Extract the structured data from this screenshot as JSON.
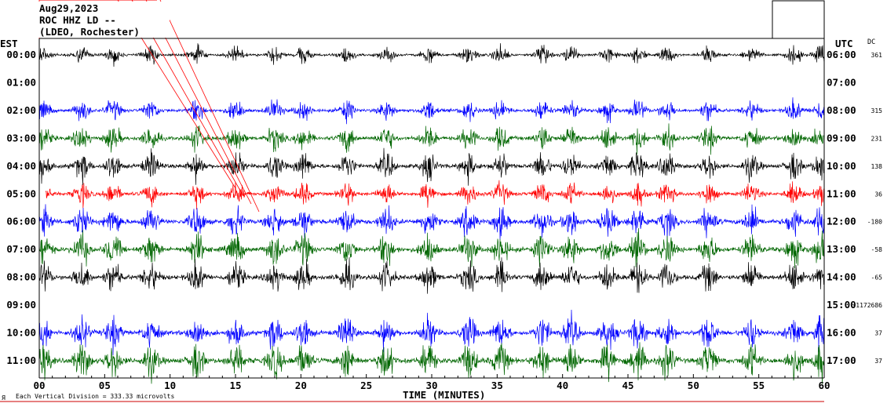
{
  "header": {
    "date": "Aug29,2023",
    "station": "ROC HHZ LD --",
    "network": "(LDEO, Rochester)"
  },
  "left_axis_label": "EST",
  "right_axis_label": "UTC",
  "dc_label": "DC",
  "footer": {
    "scale_note": "Each Vertical Division =  333.33 microvolts",
    "logo_glyph": "Я"
  },
  "colors": {
    "black": "#000000",
    "blue": "#0000ff",
    "green": "#006600",
    "red": "#ff0000"
  },
  "chart_data": {
    "type": "line",
    "title": "Aug29,2023 ROC HHZ LD -- (LDEO, Rochester)",
    "xlabel": "TIME (MINUTES)",
    "ylabel_left": "EST",
    "ylabel_right": "UTC",
    "x_ticks": [
      "00",
      "05",
      "10",
      "15",
      "20",
      "25",
      "30",
      "35",
      "40",
      "45",
      "50",
      "55",
      "60"
    ],
    "xlim": [
      0,
      60
    ],
    "grid": false,
    "rows": [
      {
        "est": "00:00",
        "utc": "06:00",
        "dc": "361",
        "color": "black",
        "amplitude": 0.55,
        "start": 0,
        "end": 60
      },
      {
        "est": "01:00",
        "utc": "07:00",
        "dc": "",
        "color": "blue",
        "amplitude": 0,
        "start": 0,
        "end": 0
      },
      {
        "est": "02:00",
        "utc": "08:00",
        "dc": "315",
        "color": "blue",
        "amplitude": 0.7,
        "start": 0,
        "end": 60
      },
      {
        "est": "03:00",
        "utc": "09:00",
        "dc": "231",
        "color": "green",
        "amplitude": 0.85,
        "start": 0,
        "end": 60
      },
      {
        "est": "04:00",
        "utc": "10:00",
        "dc": "138",
        "color": "black",
        "amplitude": 0.9,
        "start": 0,
        "end": 60
      },
      {
        "est": "05:00",
        "utc": "11:00",
        "dc": "36",
        "color": "red",
        "amplitude": 0.75,
        "start": 0.5,
        "end": 60
      },
      {
        "est": "06:00",
        "utc": "12:00",
        "dc": "-180",
        "color": "blue",
        "amplitude": 1.0,
        "start": 0,
        "end": 60
      },
      {
        "est": "07:00",
        "utc": "13:00",
        "dc": "-58",
        "color": "green",
        "amplitude": 1.05,
        "start": 0,
        "end": 60
      },
      {
        "est": "08:00",
        "utc": "14:00",
        "dc": "-65",
        "color": "black",
        "amplitude": 1.0,
        "start": 0,
        "end": 60
      },
      {
        "est": "09:00",
        "utc": "15:00",
        "dc": "-1172686",
        "color": "red",
        "amplitude": 0,
        "start": 0,
        "end": 0
      },
      {
        "est": "10:00",
        "utc": "16:00",
        "dc": "37",
        "color": "blue",
        "amplitude": 1.05,
        "start": 0,
        "end": 60
      },
      {
        "est": "11:00",
        "utc": "17:00",
        "dc": "37",
        "color": "green",
        "amplitude": 1.15,
        "start": 0,
        "end": 60
      }
    ]
  }
}
